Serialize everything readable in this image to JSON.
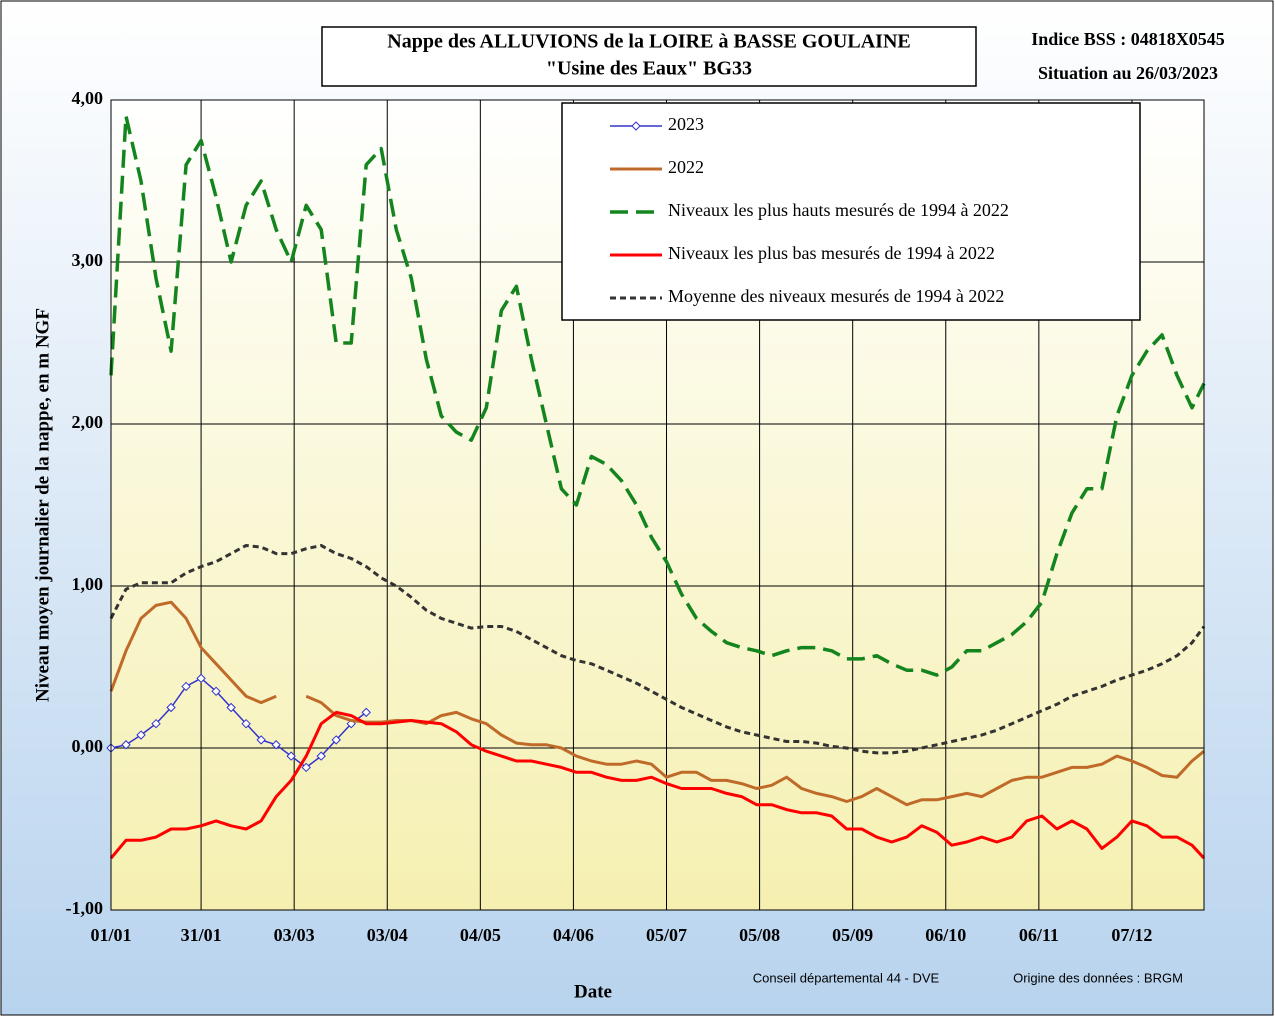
{
  "chart_data": {
    "type": "line",
    "title": [
      "Nappe des ALLUVIONS de la LOIRE à BASSE GOULAINE",
      "\"Usine des Eaux\" BG33"
    ],
    "indice": "Indice BSS : 04818X0545",
    "situation": "Situation au 26/03/2023",
    "ylabel": "Niveau moyen journalier de la nappe, en m NGF",
    "xlabel": "Date",
    "credits": [
      "Conseil départemental  44 - DVE",
      "Origine des données : BRGM"
    ],
    "grid": true,
    "legend": "top-right",
    "xlim": [
      0,
      364
    ],
    "xticks": [
      {
        "value": 0,
        "label": "01/01"
      },
      {
        "value": 30,
        "label": "31/01"
      },
      {
        "value": 61,
        "label": "03/03"
      },
      {
        "value": 92,
        "label": "03/04"
      },
      {
        "value": 123,
        "label": "04/05"
      },
      {
        "value": 154,
        "label": "04/06"
      },
      {
        "value": 185,
        "label": "05/07"
      },
      {
        "value": 216,
        "label": "05/08"
      },
      {
        "value": 247,
        "label": "05/09"
      },
      {
        "value": 278,
        "label": "06/10"
      },
      {
        "value": 309,
        "label": "06/11"
      },
      {
        "value": 340,
        "label": "07/12"
      }
    ],
    "ylim": [
      -1,
      4
    ],
    "yticks": [
      {
        "value": -1,
        "label": "-1,00"
      },
      {
        "value": 0,
        "label": "0,00"
      },
      {
        "value": 1,
        "label": "1,00"
      },
      {
        "value": 2,
        "label": "2,00"
      },
      {
        "value": 3,
        "label": "3,00"
      },
      {
        "value": 4,
        "label": "4,00"
      }
    ],
    "x": [
      0,
      5,
      10,
      15,
      20,
      25,
      30,
      35,
      40,
      45,
      50,
      55,
      60,
      65,
      70,
      75,
      80,
      85,
      90,
      95,
      100,
      105,
      110,
      115,
      120,
      125,
      130,
      135,
      140,
      145,
      150,
      155,
      160,
      165,
      170,
      175,
      180,
      185,
      190,
      195,
      200,
      205,
      210,
      215,
      220,
      225,
      230,
      235,
      240,
      245,
      250,
      255,
      260,
      265,
      270,
      275,
      280,
      285,
      290,
      295,
      300,
      305,
      310,
      315,
      320,
      325,
      330,
      335,
      340,
      345,
      350,
      355,
      360,
      364
    ],
    "series": [
      {
        "name": "2023",
        "color": "#3333cc",
        "style": "solid",
        "marker": "diamond",
        "values": [
          0.0,
          0.02,
          0.08,
          0.15,
          0.25,
          0.38,
          0.43,
          0.35,
          0.25,
          0.15,
          0.05,
          0.02,
          -0.05,
          -0.12,
          -0.05,
          0.05,
          0.15,
          0.22,
          null,
          null,
          null,
          null,
          null,
          null,
          null,
          null,
          null,
          null,
          null,
          null,
          null,
          null,
          null,
          null,
          null,
          null,
          null,
          null,
          null,
          null,
          null,
          null,
          null,
          null,
          null,
          null,
          null,
          null,
          null,
          null,
          null,
          null,
          null,
          null,
          null,
          null,
          null,
          null,
          null,
          null,
          null,
          null,
          null,
          null,
          null,
          null,
          null,
          null,
          null,
          null,
          null,
          null,
          null,
          null
        ]
      },
      {
        "name": "2022",
        "color": "#c06a2a",
        "style": "solid",
        "values": [
          0.35,
          0.6,
          0.8,
          0.88,
          0.9,
          0.8,
          0.62,
          0.52,
          0.42,
          0.32,
          0.28,
          0.32,
          null,
          0.32,
          0.28,
          0.2,
          0.17,
          0.16,
          0.16,
          0.17,
          0.17,
          0.15,
          0.2,
          0.22,
          0.18,
          0.15,
          0.08,
          0.03,
          0.02,
          0.02,
          0.0,
          -0.05,
          -0.08,
          -0.1,
          -0.1,
          -0.08,
          -0.1,
          -0.18,
          -0.15,
          -0.15,
          -0.2,
          -0.2,
          -0.22,
          -0.25,
          -0.23,
          -0.18,
          -0.25,
          -0.28,
          -0.3,
          -0.33,
          -0.3,
          -0.25,
          -0.3,
          -0.35,
          -0.32,
          -0.32,
          -0.3,
          -0.28,
          -0.3,
          -0.25,
          -0.2,
          -0.18,
          -0.18,
          -0.15,
          -0.12,
          -0.12,
          -0.1,
          -0.05,
          -0.08,
          -0.12,
          -0.17,
          -0.18,
          -0.08,
          -0.02
        ]
      },
      {
        "name": "Niveaux les plus hauts mesurés de 1994 à 2022",
        "color": "#14851e",
        "style": "dashed",
        "values": [
          2.3,
          3.9,
          3.5,
          2.9,
          2.45,
          3.6,
          3.75,
          3.4,
          3.0,
          3.35,
          3.5,
          3.2,
          3.0,
          3.35,
          3.2,
          2.5,
          2.5,
          3.6,
          3.7,
          3.2,
          2.9,
          2.4,
          2.05,
          1.95,
          1.9,
          2.1,
          2.7,
          2.85,
          2.4,
          2.0,
          1.6,
          1.5,
          1.8,
          1.75,
          1.65,
          1.5,
          1.3,
          1.15,
          0.95,
          0.8,
          0.72,
          0.65,
          0.62,
          0.6,
          0.57,
          0.6,
          0.62,
          0.62,
          0.6,
          0.55,
          0.55,
          0.57,
          0.52,
          0.48,
          0.48,
          0.45,
          0.5,
          0.6,
          0.6,
          0.65,
          0.7,
          0.78,
          0.9,
          1.2,
          1.45,
          1.6,
          1.6,
          2.05,
          2.3,
          2.45,
          2.55,
          2.3,
          2.1,
          2.25
        ]
      },
      {
        "name": "Niveaux les plus bas mesurés de 1994 à 2022",
        "color": "#ff0000",
        "style": "solid",
        "values": [
          -0.68,
          -0.57,
          -0.57,
          -0.55,
          -0.5,
          -0.5,
          -0.48,
          -0.45,
          -0.48,
          -0.5,
          -0.45,
          -0.3,
          -0.2,
          -0.05,
          0.15,
          0.22,
          0.2,
          0.15,
          0.15,
          0.16,
          0.17,
          0.16,
          0.15,
          0.1,
          0.02,
          -0.02,
          -0.05,
          -0.08,
          -0.08,
          -0.1,
          -0.12,
          -0.15,
          -0.15,
          -0.18,
          -0.2,
          -0.2,
          -0.18,
          -0.22,
          -0.25,
          -0.25,
          -0.25,
          -0.28,
          -0.3,
          -0.35,
          -0.35,
          -0.38,
          -0.4,
          -0.4,
          -0.42,
          -0.5,
          -0.5,
          -0.55,
          -0.58,
          -0.55,
          -0.48,
          -0.52,
          -0.6,
          -0.58,
          -0.55,
          -0.58,
          -0.55,
          -0.45,
          -0.42,
          -0.5,
          -0.45,
          -0.5,
          -0.62,
          -0.55,
          -0.45,
          -0.48,
          -0.55,
          -0.55,
          -0.6,
          -0.68
        ]
      },
      {
        "name": "Moyenne des niveaux mesurés de 1994 à 2022",
        "color": "#333333",
        "style": "dotted",
        "values": [
          0.8,
          0.98,
          1.02,
          1.02,
          1.02,
          1.08,
          1.12,
          1.15,
          1.2,
          1.25,
          1.24,
          1.2,
          1.2,
          1.23,
          1.25,
          1.2,
          1.17,
          1.12,
          1.05,
          1.0,
          0.93,
          0.85,
          0.8,
          0.77,
          0.74,
          0.75,
          0.75,
          0.72,
          0.67,
          0.62,
          0.57,
          0.54,
          0.52,
          0.48,
          0.44,
          0.4,
          0.35,
          0.3,
          0.25,
          0.21,
          0.17,
          0.13,
          0.1,
          0.08,
          0.06,
          0.04,
          0.04,
          0.03,
          0.01,
          0.0,
          -0.02,
          -0.03,
          -0.03,
          -0.02,
          0.0,
          0.02,
          0.04,
          0.06,
          0.08,
          0.11,
          0.15,
          0.19,
          0.23,
          0.27,
          0.32,
          0.35,
          0.38,
          0.42,
          0.45,
          0.48,
          0.52,
          0.57,
          0.65,
          0.75
        ]
      }
    ]
  }
}
